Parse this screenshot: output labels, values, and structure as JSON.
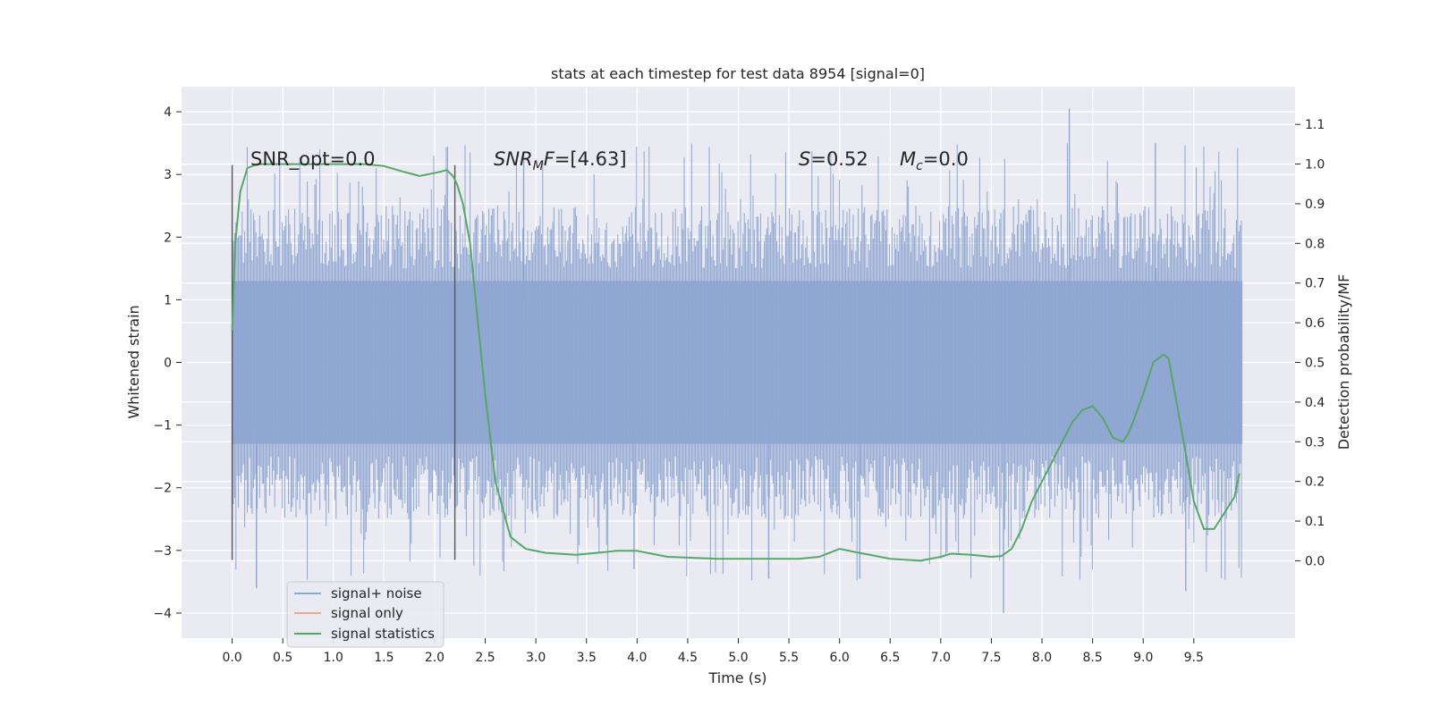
{
  "chart_data": {
    "type": "line",
    "title": "stats at each timestep for test data 8954 [signal=0]",
    "xlabel": "Time (s)",
    "ylabel_left": "Whitened strain",
    "ylabel_right": "Detection probability/MF",
    "xlim": [
      -0.5,
      10.5
    ],
    "ylim_left": [
      -4.4,
      4.4
    ],
    "ylim_right": [
      -0.195,
      1.195
    ],
    "x_ticks": [
      "0.0",
      "0.5",
      "1.0",
      "1.5",
      "2.0",
      "2.5",
      "3.0",
      "3.5",
      "4.0",
      "4.5",
      "5.0",
      "5.5",
      "6.0",
      "6.5",
      "7.0",
      "7.5",
      "8.0",
      "8.5",
      "9.0",
      "9.5"
    ],
    "y_left_ticks": [
      "4",
      "3",
      "2",
      "1",
      "0",
      "−1",
      "−2",
      "−3",
      "−4"
    ],
    "y_right_ticks": [
      "0.0",
      "0.1",
      "0.2",
      "0.3",
      "0.4",
      "0.5",
      "0.6",
      "0.7",
      "0.8",
      "0.9",
      "1.0",
      "1.1"
    ],
    "grid": true,
    "legend_position": "bottom-left",
    "legend": [
      {
        "label": "signal+ noise",
        "color": "#8fa6d2"
      },
      {
        "label": "signal only",
        "color": "#e8a98f"
      },
      {
        "label": "signal statistics",
        "color": "#55a868"
      }
    ],
    "annotations": {
      "snr_opt": "SNR_opt=0.0",
      "snr_mf_name": "SNR",
      "snr_mf_sub": "M",
      "snr_mf_rest": "F",
      "snr_mf_value": "=[4.63]",
      "s_name": "S",
      "s_value": "=0.52",
      "mc_name": "M",
      "mc_sub": "c",
      "mc_value": "=0.0"
    },
    "vertical_markers": [
      {
        "x": 0.0,
        "y_range": [
          -3.15,
          3.15
        ]
      },
      {
        "x": 2.2,
        "y_range": [
          -3.15,
          3.15
        ]
      }
    ],
    "series": [
      {
        "name": "signal+ noise",
        "color": "#8fa6d2",
        "axis": "left",
        "x_range": [
          0.0,
          9.98
        ],
        "core_band": [
          -1.3,
          1.3
        ],
        "min": -4.0,
        "max": 4.05
      },
      {
        "name": "signal only",
        "color": "#e8a98f",
        "axis": "left",
        "x": [],
        "y": []
      },
      {
        "name": "signal statistics",
        "color": "#55a868",
        "axis": "right",
        "x": [
          0.0,
          0.03,
          0.08,
          0.15,
          0.25,
          0.4,
          0.7,
          1.0,
          1.3,
          1.5,
          1.7,
          1.85,
          1.95,
          2.05,
          2.12,
          2.18,
          2.22,
          2.28,
          2.35,
          2.42,
          2.5,
          2.6,
          2.75,
          2.9,
          3.1,
          3.4,
          3.6,
          3.8,
          4.0,
          4.3,
          4.8,
          5.3,
          5.6,
          5.8,
          5.9,
          6.0,
          6.2,
          6.5,
          6.8,
          7.0,
          7.1,
          7.3,
          7.5,
          7.6,
          7.7,
          7.8,
          7.9,
          8.0,
          8.1,
          8.2,
          8.3,
          8.4,
          8.5,
          8.6,
          8.7,
          8.8,
          8.85,
          8.9,
          9.0,
          9.1,
          9.2,
          9.25,
          9.3,
          9.4,
          9.5,
          9.6,
          9.7,
          9.75,
          9.8,
          9.9,
          9.95
        ],
        "y": [
          0.58,
          0.8,
          0.93,
          0.99,
          1.0,
          1.0,
          1.0,
          1.0,
          1.0,
          0.995,
          0.98,
          0.97,
          0.975,
          0.98,
          0.985,
          0.97,
          0.95,
          0.9,
          0.8,
          0.62,
          0.42,
          0.2,
          0.06,
          0.03,
          0.02,
          0.015,
          0.02,
          0.025,
          0.025,
          0.01,
          0.005,
          0.005,
          0.005,
          0.01,
          0.02,
          0.03,
          0.02,
          0.005,
          0.0,
          0.01,
          0.018,
          0.015,
          0.01,
          0.012,
          0.03,
          0.08,
          0.15,
          0.2,
          0.25,
          0.3,
          0.35,
          0.38,
          0.39,
          0.36,
          0.31,
          0.3,
          0.32,
          0.35,
          0.42,
          0.5,
          0.52,
          0.51,
          0.44,
          0.3,
          0.15,
          0.08,
          0.08,
          0.1,
          0.12,
          0.16,
          0.22
        ]
      }
    ]
  }
}
